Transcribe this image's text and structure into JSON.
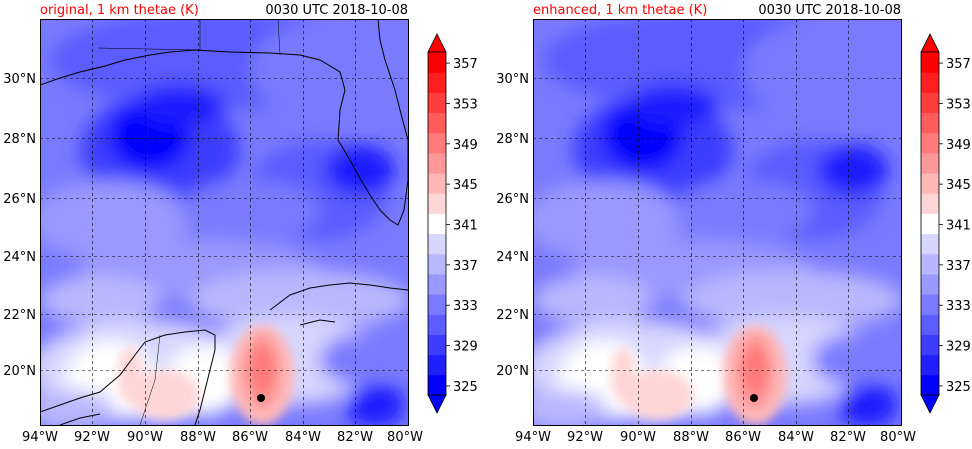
{
  "figure": {
    "panels": [
      {
        "name": "original",
        "title_left": "original, 1 km thetae (K)",
        "title_right": "0030 UTC 2018-10-08"
      },
      {
        "name": "enhanced",
        "title_left": "enhanced, 1 km thetae (K)",
        "title_right": "0030 UTC 2018-10-08"
      }
    ],
    "longitude_ticks": [
      "94°W",
      "92°W",
      "90°W",
      "88°W",
      "86°W",
      "84°W",
      "82°W",
      "80°W"
    ],
    "latitude_ticks": [
      "30°N",
      "28°N",
      "26°N",
      "24°N",
      "22°N",
      "20°N"
    ],
    "colorbar": {
      "tick_labels": [
        "325",
        "329",
        "333",
        "337",
        "341",
        "345",
        "349",
        "353",
        "357"
      ],
      "levels": [
        325,
        327,
        329,
        331,
        333,
        335,
        337,
        339,
        341,
        343,
        345,
        347,
        349,
        351,
        353,
        355,
        357
      ],
      "colors": [
        "#0000ff",
        "#1f1fff",
        "#3d3dff",
        "#5c5cff",
        "#7a7aff",
        "#9999ff",
        "#b8b8ff",
        "#d6d6ff",
        "#ffffff",
        "#ffd6d6",
        "#ffb8b8",
        "#ff9999",
        "#ff7a7a",
        "#ff5c5c",
        "#ff3d3d",
        "#ff1f1f",
        "#ff0000"
      ],
      "extend": "both"
    },
    "storm_center": {
      "lon": -85.5,
      "lat": 19.0
    }
  },
  "chart_data": {
    "type": "heatmap",
    "variable": "1 km thetae (K)",
    "valid_time": "0030 UTC 2018-10-08",
    "x_range_deg_lon": [
      -94,
      -80
    ],
    "y_range_deg_lat": [
      18.2,
      32
    ],
    "color_range": [
      325,
      357
    ],
    "grid": true
  }
}
